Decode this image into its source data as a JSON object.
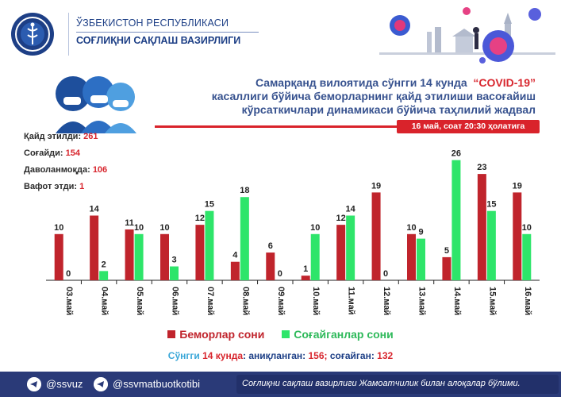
{
  "header": {
    "republic": "ЎЗБЕКИСТОН РЕСПУБЛИКАСИ",
    "ministry": "СОҒЛИҚНИ САҚЛАШ ВАЗИРЛИГИ"
  },
  "title": {
    "line1_prefix": "Самарқанд вилоятида сўнгги 14 кунда",
    "line1_highlight": "“COVID-19”",
    "line2": "касаллиги бўйича беморларнинг қайд этилиши васоғайиш",
    "line3": "кўрсаткичлари динамикаси бўйича таҳлилий жадвал"
  },
  "date_badge": "16 май, соат 20:30 ҳолатига",
  "stats": [
    {
      "label": "Қайд этилди:",
      "value": "261"
    },
    {
      "label": "Соғайди:",
      "value": "154"
    },
    {
      "label": "Даволанмоқда:",
      "value": "106"
    },
    {
      "label": "Вафот этди:",
      "value": "1"
    }
  ],
  "colors": {
    "patients": "#c0242c",
    "recovered": "#2ee56a",
    "accent_blue": "#1d3f86",
    "footer": "#2a3a78"
  },
  "chart_data": {
    "type": "bar",
    "categories": [
      "03.май",
      "04.май",
      "05.май",
      "06.май",
      "07.май",
      "08.май",
      "09.май",
      "10.май",
      "11.май",
      "12.май",
      "13.май",
      "14.май",
      "15.май",
      "16.май"
    ],
    "series": [
      {
        "name": "Беморлар сони",
        "values": [
          10,
          14,
          11,
          10,
          12,
          4,
          6,
          1,
          12,
          19,
          10,
          5,
          23,
          19
        ]
      },
      {
        "name": "Соғайганлар сони",
        "values": [
          0,
          2,
          10,
          3,
          15,
          18,
          0,
          10,
          14,
          0,
          9,
          26,
          15,
          10
        ]
      }
    ],
    "ylim": [
      0,
      28
    ],
    "grid": false,
    "legend_position": "bottom"
  },
  "legend": {
    "patients": "Беморлар сони",
    "recovered": "Соғайганлар сони"
  },
  "summary": {
    "prefix": "Сўнгги",
    "days": "14 кунда",
    "identified_label": ": аниқланган:",
    "identified_value": "156;",
    "recovered_label": "соғайган:",
    "recovered_value": "132"
  },
  "footer": {
    "handle1": "@ssvuz",
    "handle2": "@ssvmatbuotkotibi",
    "note": "Соғлиқни сақлаш вазирлиги Жамоатчилик билан алоқалар бўлими."
  }
}
